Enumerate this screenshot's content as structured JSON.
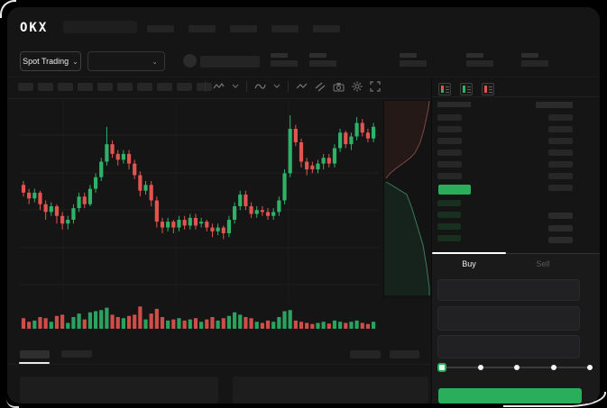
{
  "window": {
    "logo_text": "OKX"
  },
  "colors": {
    "green": "#2eb268",
    "red": "#e25450",
    "ui_green": "#2bae5c",
    "app_bg": "#151515"
  },
  "header": {
    "market_selector_label": "Spot Trading",
    "chevron": "⌄",
    "nav_placeholder_count": 5,
    "stat_placeholder_count": 5
  },
  "toolbar": {
    "timeframe_placeholder_count": 10,
    "icons": [
      "chart-type-icon",
      "chevron-down-icon",
      "indicators-icon",
      "chevron-down-icon",
      "line-tool-icon",
      "parallel-channel-icon",
      "camera-icon",
      "settings-gear-icon",
      "fullscreen-icon"
    ]
  },
  "chart_data": {
    "type": "candlestick",
    "title": "",
    "note": "normalized price scale 0-100, axis labels not visible in screenshot",
    "ylim": [
      0,
      100
    ],
    "grid": true,
    "candles": [
      [
        58,
        54,
        60,
        52,
        0.45
      ],
      [
        54,
        51,
        56,
        48,
        0.3
      ],
      [
        51,
        54,
        56,
        49,
        0.35
      ],
      [
        54,
        48,
        55,
        45,
        0.5
      ],
      [
        48,
        44,
        50,
        40,
        0.45
      ],
      [
        44,
        47,
        49,
        42,
        0.3
      ],
      [
        47,
        42,
        48,
        38,
        0.55
      ],
      [
        42,
        38,
        44,
        35,
        0.6
      ],
      [
        38,
        40,
        42,
        35,
        0.25
      ],
      [
        40,
        46,
        48,
        38,
        0.5
      ],
      [
        46,
        52,
        54,
        44,
        0.65
      ],
      [
        52,
        48,
        54,
        46,
        0.4
      ],
      [
        48,
        56,
        58,
        47,
        0.7
      ],
      [
        56,
        62,
        64,
        54,
        0.75
      ],
      [
        62,
        70,
        72,
        60,
        0.8
      ],
      [
        70,
        79,
        88,
        68,
        0.9
      ],
      [
        79,
        74,
        81,
        72,
        0.6
      ],
      [
        74,
        71,
        76,
        68,
        0.5
      ],
      [
        71,
        74,
        76,
        69,
        0.45
      ],
      [
        74,
        69,
        76,
        66,
        0.55
      ],
      [
        69,
        63,
        71,
        61,
        0.6
      ],
      [
        63,
        55,
        65,
        52,
        0.95
      ],
      [
        55,
        58,
        60,
        53,
        0.4
      ],
      [
        58,
        50,
        60,
        47,
        0.65
      ],
      [
        50,
        39,
        52,
        36,
        0.85
      ],
      [
        39,
        36,
        41,
        33,
        0.5
      ],
      [
        36,
        39,
        41,
        34,
        0.35
      ],
      [
        39,
        36,
        40,
        33,
        0.4
      ],
      [
        36,
        40,
        42,
        34,
        0.45
      ],
      [
        40,
        37,
        42,
        35,
        0.35
      ],
      [
        37,
        41,
        43,
        35,
        0.4
      ],
      [
        41,
        37,
        43,
        35,
        0.45
      ],
      [
        38,
        39,
        41,
        36,
        0.3
      ],
      [
        39,
        36,
        40,
        34,
        0.4
      ],
      [
        36,
        34,
        38,
        31,
        0.5
      ],
      [
        34,
        36,
        38,
        32,
        0.35
      ],
      [
        36,
        33,
        37,
        30,
        0.45
      ],
      [
        33,
        40,
        42,
        31,
        0.55
      ],
      [
        40,
        47,
        49,
        38,
        0.7
      ],
      [
        47,
        53,
        55,
        45,
        0.6
      ],
      [
        53,
        47,
        55,
        45,
        0.5
      ],
      [
        47,
        43,
        49,
        41,
        0.45
      ],
      [
        43,
        45,
        47,
        41,
        0.3
      ],
      [
        45,
        44,
        47,
        42,
        0.25
      ],
      [
        44,
        42,
        46,
        40,
        0.35
      ],
      [
        42,
        44,
        46,
        40,
        0.3
      ],
      [
        44,
        50,
        52,
        42,
        0.5
      ],
      [
        50,
        64,
        66,
        48,
        0.75
      ],
      [
        64,
        87,
        94,
        62,
        0.8
      ],
      [
        87,
        80,
        89,
        78,
        0.35
      ],
      [
        80,
        70,
        82,
        67,
        0.3
      ],
      [
        70,
        66,
        72,
        63,
        0.25
      ],
      [
        68,
        66,
        70,
        64,
        0.2
      ],
      [
        66,
        69,
        71,
        64,
        0.25
      ],
      [
        69,
        72,
        74,
        66,
        0.3
      ],
      [
        72,
        69,
        74,
        67,
        0.22
      ],
      [
        69,
        77,
        79,
        67,
        0.35
      ],
      [
        77,
        85,
        87,
        75,
        0.3
      ],
      [
        85,
        79,
        86,
        77,
        0.25
      ],
      [
        79,
        83,
        85,
        76,
        0.3
      ],
      [
        83,
        90,
        93,
        81,
        0.35
      ],
      [
        90,
        85,
        92,
        83,
        0.25
      ],
      [
        85,
        82,
        87,
        80,
        0.2
      ],
      [
        82,
        88,
        90,
        80,
        0.3
      ]
    ],
    "depth": {
      "asks_curve": [
        [
          50,
          2
        ],
        [
          49,
          10
        ],
        [
          47,
          20
        ],
        [
          44,
          34
        ],
        [
          40,
          48
        ],
        [
          34,
          60
        ],
        [
          28,
          66
        ],
        [
          20,
          72
        ],
        [
          13,
          77
        ],
        [
          6,
          83
        ],
        [
          2,
          88
        ]
      ],
      "bids_curve": [
        [
          2,
          92
        ],
        [
          9,
          96
        ],
        [
          25,
          106
        ],
        [
          31,
          122
        ],
        [
          37,
          142
        ],
        [
          43,
          162
        ],
        [
          47,
          186
        ],
        [
          50,
          210
        ],
        [
          50,
          218
        ]
      ]
    }
  },
  "orderbook": {
    "mode_icons": [
      "orderbook-combined-icon",
      "orderbook-buy-icon",
      "orderbook-sell-icon"
    ],
    "ask_row_count": 6,
    "right_top_row_count": 7,
    "bid_row_count": 4,
    "right_bottom_row_count": 3,
    "has_last_price_highlight": true
  },
  "trade": {
    "buy_tab_label": "Buy",
    "sell_tab_label": "Sell",
    "active_tab": "Buy",
    "input_count": 3,
    "slider": {
      "stop_count": 5,
      "active_stop_index": 0,
      "value_percent": 0
    },
    "buy_button_label": ""
  },
  "bottom_panel": {
    "tab_count": 2,
    "right_placeholder_count": 2,
    "table_placeholder_count": 2
  }
}
